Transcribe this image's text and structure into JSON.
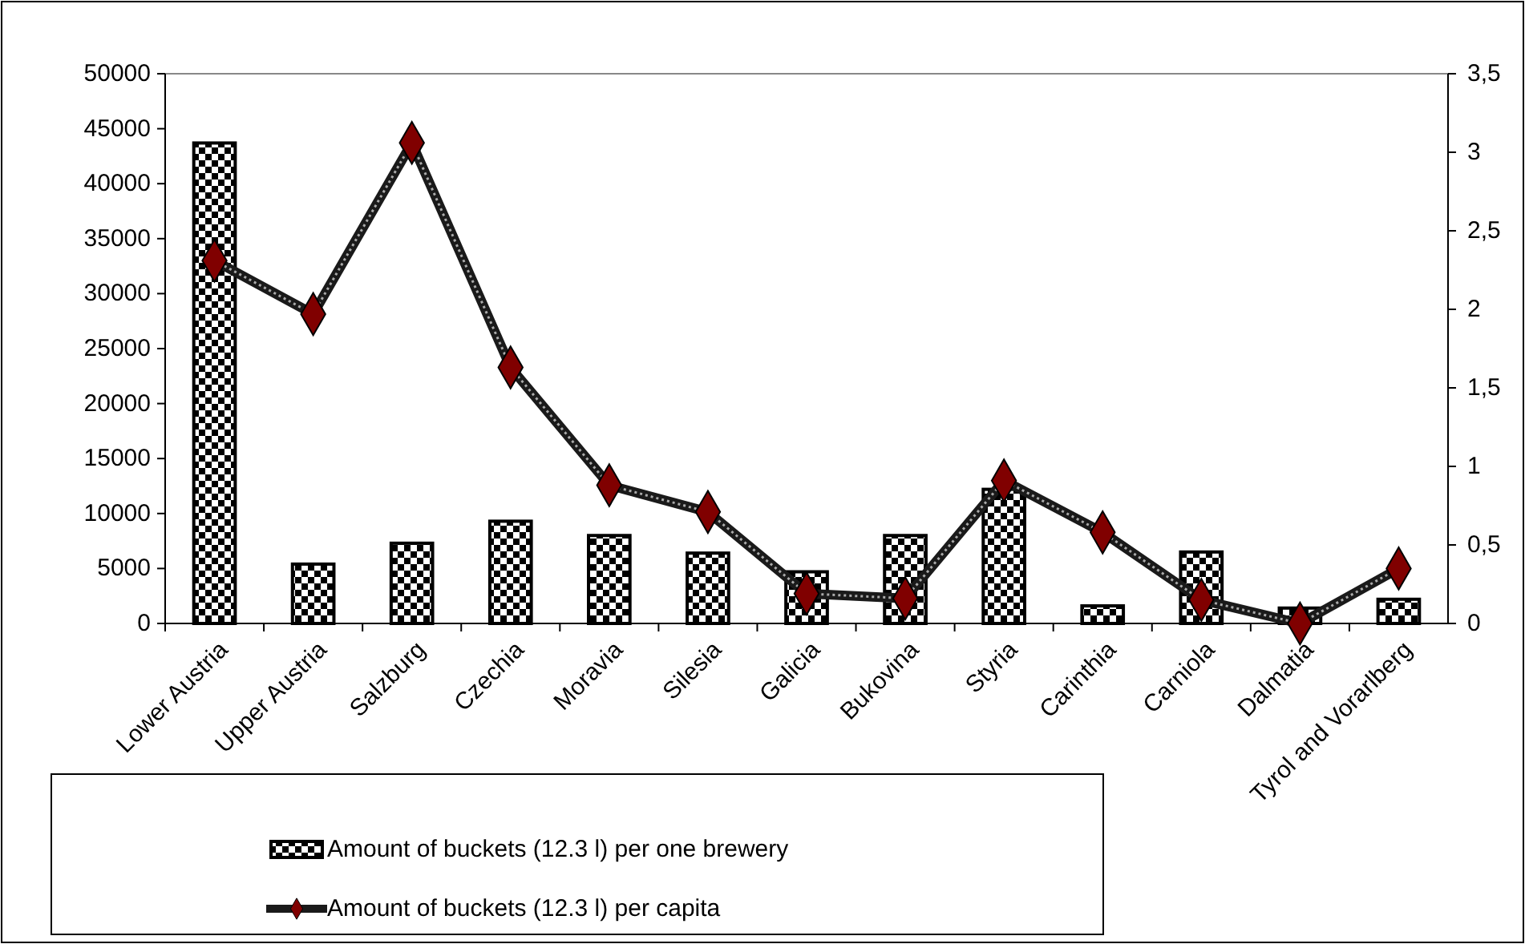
{
  "chart_data": {
    "type": "bar",
    "categories": [
      "Lower Austria",
      "Upper Austria",
      "Salzburg",
      "Czechia",
      "Moravia",
      "Silesia",
      "Galicia",
      "Bukovina",
      "Styria",
      "Carinthia",
      "Carniola",
      "Dalmatia",
      "Tyrol and Vorarlberg"
    ],
    "series": [
      {
        "name": "Amount of buckets (12.3 l) per one brewery",
        "color": "#000000",
        "values": [
          43700,
          5400,
          7300,
          9300,
          8000,
          6400,
          4700,
          8000,
          12200,
          1600,
          6500,
          1400,
          2200
        ]
      },
      {
        "name": "Amount of buckets (12.3 l) per capita",
        "type": "line",
        "axis": "y2",
        "color": "#800000",
        "values": [
          2.31,
          1.97,
          3.06,
          1.63,
          0.88,
          0.71,
          0.19,
          0.16,
          0.91,
          0.58,
          0.15,
          0.0,
          0.35
        ]
      }
    ],
    "ylim": [
      0,
      50000
    ],
    "yticks": [
      0,
      5000,
      10000,
      15000,
      20000,
      25000,
      30000,
      35000,
      40000,
      45000,
      50000
    ],
    "y2lim": [
      0,
      3.5
    ],
    "y2ticks": [
      0,
      {
        "value": 0.5,
        "label": "0,5"
      },
      1,
      {
        "value": 1.5,
        "label": "1,5"
      },
      2,
      {
        "value": 2.5,
        "label": "2,5"
      },
      3,
      {
        "value": 3.5,
        "label": "3,5"
      }
    ],
    "legend": "bottom left",
    "marker": "diamond",
    "grid": false
  }
}
